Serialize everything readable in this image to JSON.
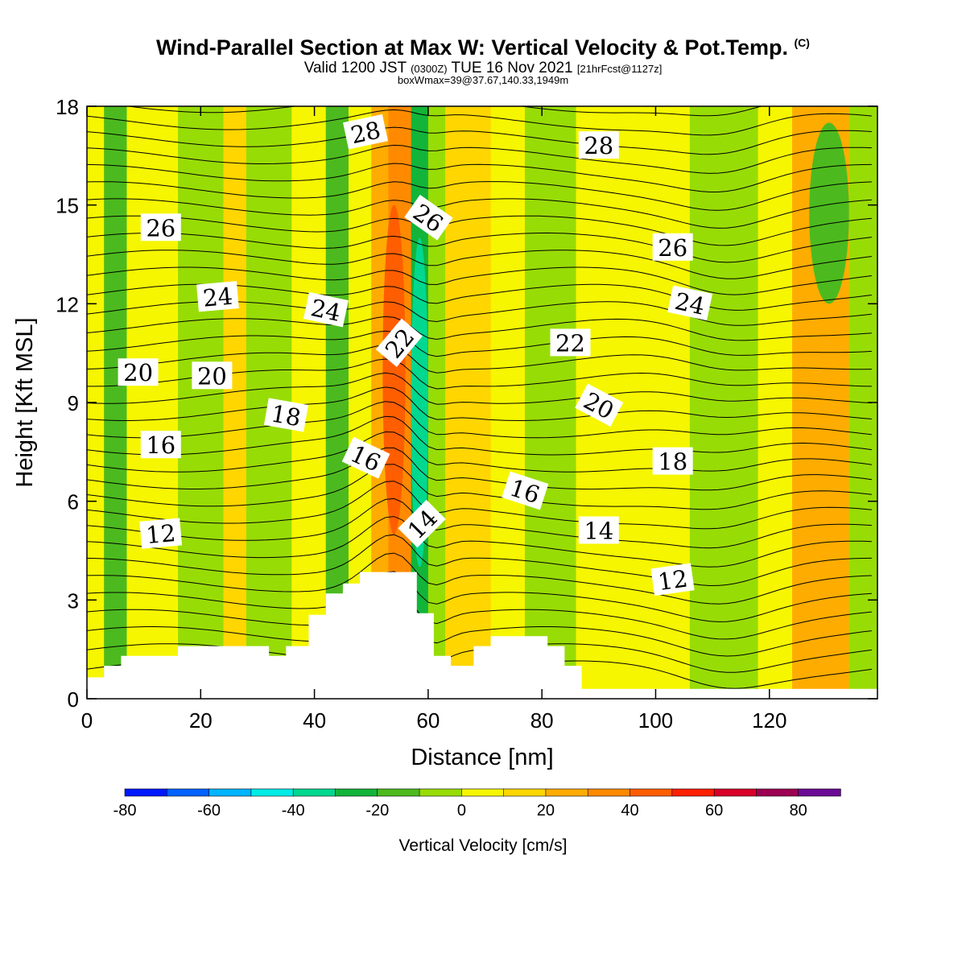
{
  "header": {
    "title": "Wind-Parallel Section at Max W: Vertical Velocity & Pot.Temp.",
    "copyright": "(C)",
    "valid_prefix": "Valid 1200 JST",
    "utc": "(0300Z)",
    "valid_date": "TUE 16 Nov 2021",
    "forecast": "[21hrFcst@1127z]",
    "box_info": "boxWmax=39@37.67,140.33,1949m"
  },
  "chart_data": {
    "type": "heatmap",
    "title": "Wind-Parallel Section at Max W: Vertical Velocity & Pot.Temp.",
    "xlabel": "Distance [nm]",
    "ylabel": "Height [Kft MSL]",
    "xlim": [
      0,
      139
    ],
    "ylim": [
      0,
      18
    ],
    "xticks": [
      0,
      20,
      40,
      60,
      80,
      100,
      120
    ],
    "yticks": [
      0,
      3,
      6,
      9,
      12,
      15,
      18
    ],
    "colorbar": {
      "label": "Vertical Velocity [cm/s]",
      "range": [
        -80,
        90
      ],
      "step": 10,
      "tick_values": [
        -80,
        -60,
        -40,
        -20,
        0,
        20,
        40,
        60,
        80
      ],
      "colors": [
        "#0018ff",
        "#0062ff",
        "#00b4ff",
        "#00ece6",
        "#00d890",
        "#13b43a",
        "#4cba1e",
        "#98dc06",
        "#f6f600",
        "#ffd600",
        "#ffac00",
        "#ff8a00",
        "#ff5e00",
        "#ff2000",
        "#d80028",
        "#9c0052",
        "#6a0a96"
      ]
    },
    "velocity_bands": [
      {
        "x": 0,
        "w": 3,
        "value": 0
      },
      {
        "x": 3,
        "w": 4,
        "value": -15
      },
      {
        "x": 7,
        "w": 9,
        "value": 3
      },
      {
        "x": 16,
        "w": 8,
        "value": -5
      },
      {
        "x": 24,
        "w": 4,
        "value": 15
      },
      {
        "x": 28,
        "w": 8,
        "value": -5
      },
      {
        "x": 36,
        "w": 6,
        "value": 3
      },
      {
        "x": 42,
        "w": 4,
        "value": -15
      },
      {
        "x": 46,
        "w": 4,
        "value": 3
      },
      {
        "x": 50,
        "w": 3,
        "value": 25
      },
      {
        "x": 53,
        "w": 4,
        "value": 35
      },
      {
        "x": 57,
        "w": 3,
        "value": -25
      },
      {
        "x": 60,
        "w": 3,
        "value": -5
      },
      {
        "x": 63,
        "w": 8,
        "value": 15
      },
      {
        "x": 71,
        "w": 6,
        "value": 3
      },
      {
        "x": 77,
        "w": 9,
        "value": -5
      },
      {
        "x": 86,
        "w": 20,
        "value": 3
      },
      {
        "x": 106,
        "w": 12,
        "value": -5
      },
      {
        "x": 118,
        "w": 6,
        "value": 3
      },
      {
        "x": 124,
        "w": 10,
        "value": 22
      },
      {
        "x": 134,
        "w": 5,
        "value": -5
      }
    ],
    "strong_features": [
      {
        "name": "updraft",
        "x": [
          52,
          56
        ],
        "y": [
          5,
          15
        ],
        "value": 45
      },
      {
        "name": "downdraft",
        "x": [
          57,
          60
        ],
        "y": [
          4,
          14
        ],
        "value": -40
      },
      {
        "name": "upper-downdraft",
        "x": [
          127,
          134
        ],
        "y": [
          12,
          17.5
        ],
        "value": -20
      },
      {
        "name": "east-updraft",
        "x": [
          124,
          133
        ],
        "y": [
          5,
          11.5
        ],
        "value": 25
      }
    ],
    "terrain": [
      [
        0,
        0.65
      ],
      [
        3,
        0.65
      ],
      [
        3,
        1.0
      ],
      [
        6,
        1.0
      ],
      [
        6,
        1.3
      ],
      [
        16,
        1.3
      ],
      [
        16,
        1.6
      ],
      [
        32,
        1.6
      ],
      [
        32,
        1.3
      ],
      [
        35,
        1.3
      ],
      [
        35,
        1.6
      ],
      [
        39,
        1.6
      ],
      [
        39,
        2.55
      ],
      [
        42,
        2.55
      ],
      [
        42,
        3.2
      ],
      [
        45,
        3.2
      ],
      [
        45,
        3.5
      ],
      [
        48,
        3.5
      ],
      [
        48,
        3.85
      ],
      [
        58,
        3.85
      ],
      [
        58,
        2.6
      ],
      [
        61,
        2.6
      ],
      [
        61,
        1.3
      ],
      [
        64,
        1.3
      ],
      [
        64,
        1.0
      ],
      [
        68,
        1.0
      ],
      [
        68,
        1.6
      ],
      [
        71,
        1.6
      ],
      [
        71,
        1.9
      ],
      [
        81,
        1.9
      ],
      [
        81,
        1.6
      ],
      [
        84,
        1.6
      ],
      [
        84,
        1.0
      ],
      [
        87,
        1.0
      ],
      [
        87,
        0.3
      ],
      [
        139,
        0.3
      ]
    ],
    "contour_labels": [
      {
        "text": "28",
        "x": 49,
        "y": 17.2,
        "rotation": -12
      },
      {
        "text": "28",
        "x": 90,
        "y": 16.8,
        "rotation": 0
      },
      {
        "text": "26",
        "x": 13,
        "y": 14.3,
        "rotation": 0
      },
      {
        "text": "26",
        "x": 60,
        "y": 14.6,
        "rotation": 35
      },
      {
        "text": "26",
        "x": 103,
        "y": 13.7,
        "rotation": 0
      },
      {
        "text": "24",
        "x": 23,
        "y": 12.2,
        "rotation": -5
      },
      {
        "text": "24",
        "x": 42,
        "y": 11.8,
        "rotation": 12
      },
      {
        "text": "24",
        "x": 106,
        "y": 12.0,
        "rotation": 12
      },
      {
        "text": "22",
        "x": 55,
        "y": 10.8,
        "rotation": -50
      },
      {
        "text": "22",
        "x": 85,
        "y": 10.8,
        "rotation": 0
      },
      {
        "text": "20",
        "x": 9,
        "y": 9.9,
        "rotation": 0
      },
      {
        "text": "20",
        "x": 22,
        "y": 9.8,
        "rotation": 0
      },
      {
        "text": "20",
        "x": 90,
        "y": 8.9,
        "rotation": 28
      },
      {
        "text": "18",
        "x": 35,
        "y": 8.6,
        "rotation": 10
      },
      {
        "text": "18",
        "x": 103,
        "y": 7.2,
        "rotation": 0
      },
      {
        "text": "16",
        "x": 13,
        "y": 7.7,
        "rotation": 0
      },
      {
        "text": "16",
        "x": 49,
        "y": 7.3,
        "rotation": 25
      },
      {
        "text": "16",
        "x": 77,
        "y": 6.3,
        "rotation": 18
      },
      {
        "text": "14",
        "x": 59,
        "y": 5.3,
        "rotation": -45
      },
      {
        "text": "14",
        "x": 90,
        "y": 5.1,
        "rotation": 0
      },
      {
        "text": "12",
        "x": 13,
        "y": 5.0,
        "rotation": -5
      },
      {
        "text": "12",
        "x": 103,
        "y": 3.6,
        "rotation": -8
      }
    ]
  }
}
